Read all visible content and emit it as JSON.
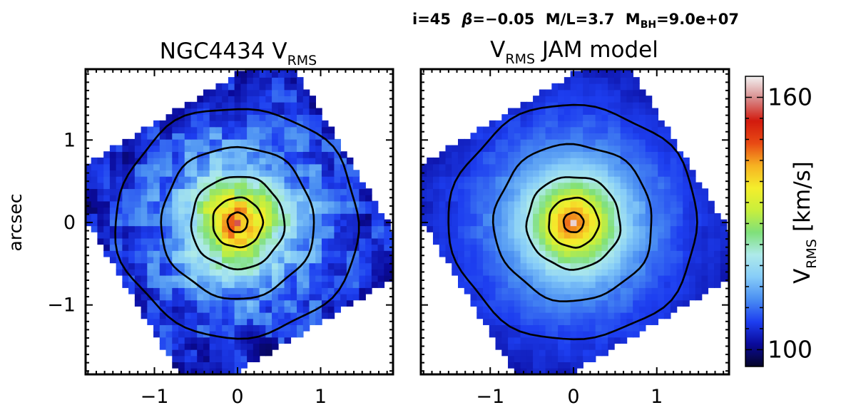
{
  "params_title": {
    "i": "i=45",
    "beta_sym": "β",
    "beta": "=−0.05",
    "ml": "M/L=3.7",
    "mbh_prefix": "M",
    "mbh_sub": "BH",
    "mbh_val": "=9.0e+07"
  },
  "colorbar": {
    "label_main": "V",
    "label_sub": "RMS",
    "label_unit": "[km/s]",
    "ticks": [
      "160",
      "100"
    ],
    "range": [
      96,
      165
    ],
    "stops": [
      "#050528",
      "#0a0a9a",
      "#1d3ef0",
      "#4a8ef2",
      "#86ccf8",
      "#aeeaea",
      "#7fe07a",
      "#c8ef3c",
      "#f4ee2c",
      "#f6b222",
      "#e84a14",
      "#d21a0e",
      "#d88a8a",
      "#f2f2f2"
    ]
  },
  "chart_data": [
    {
      "type": "heatmap",
      "panel": "observed",
      "title_prefix": "NGC4434 V",
      "title_sub": "RMS",
      "title_suffix": "",
      "ylabel": "arcsec",
      "xlabel": "",
      "xlim": [
        -1.85,
        1.85
      ],
      "ylim": [
        -1.85,
        1.85
      ],
      "xticks": [
        "−1",
        "0",
        "1"
      ],
      "yticks": [
        "1",
        "0",
        "−1"
      ],
      "color_range": [
        96,
        165
      ],
      "field_rotation_deg": 31,
      "field_half_width": 1.55,
      "contour_radii": [
        0.12,
        0.3,
        0.56,
        0.92,
        1.42
      ],
      "central_value": 162,
      "profile_core": 0.18,
      "noise": 4.5,
      "dark_patches": [
        [
          -0.9,
          1.55,
          100
        ],
        [
          -0.75,
          1.3,
          101
        ],
        [
          1.45,
          0.85,
          99
        ],
        [
          0.35,
          -1.55,
          98
        ],
        [
          0.15,
          -1.4,
          101
        ],
        [
          -0.3,
          1.6,
          102
        ]
      ]
    },
    {
      "type": "heatmap",
      "panel": "model",
      "title_prefix": "V",
      "title_sub": "RMS",
      "title_suffix": " JAM model",
      "ylabel": "",
      "xlabel": "",
      "xlim": [
        -1.85,
        1.85
      ],
      "ylim": [
        -1.85,
        1.85
      ],
      "xticks": [
        "−1",
        "0",
        "1"
      ],
      "yticks": [],
      "color_range": [
        96,
        165
      ],
      "field_rotation_deg": 31,
      "field_half_width": 1.55,
      "contour_radii": [
        0.12,
        0.3,
        0.56,
        0.95,
        1.45
      ],
      "central_value": 164,
      "profile_core": 0.18,
      "noise": 1.2,
      "dark_patches": []
    }
  ]
}
